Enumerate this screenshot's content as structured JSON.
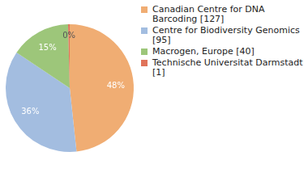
{
  "chart_data": {
    "type": "pie",
    "categories": [
      "Canadian Centre for DNA Barcoding [127]",
      "Centre for Biodiversity Genomics [95]",
      "Macrogen, Europe [40]",
      "Technische Universitat Darmstadt [1]"
    ],
    "values": [
      48.3,
      36.1,
      15.2,
      0.4
    ],
    "value_labels": [
      "48%",
      "36%",
      "15%",
      "0%"
    ],
    "colors": [
      "#f0ad73",
      "#a3bde0",
      "#9dc67a",
      "#e0735a"
    ],
    "data_labels": true,
    "legend": "top-right"
  }
}
